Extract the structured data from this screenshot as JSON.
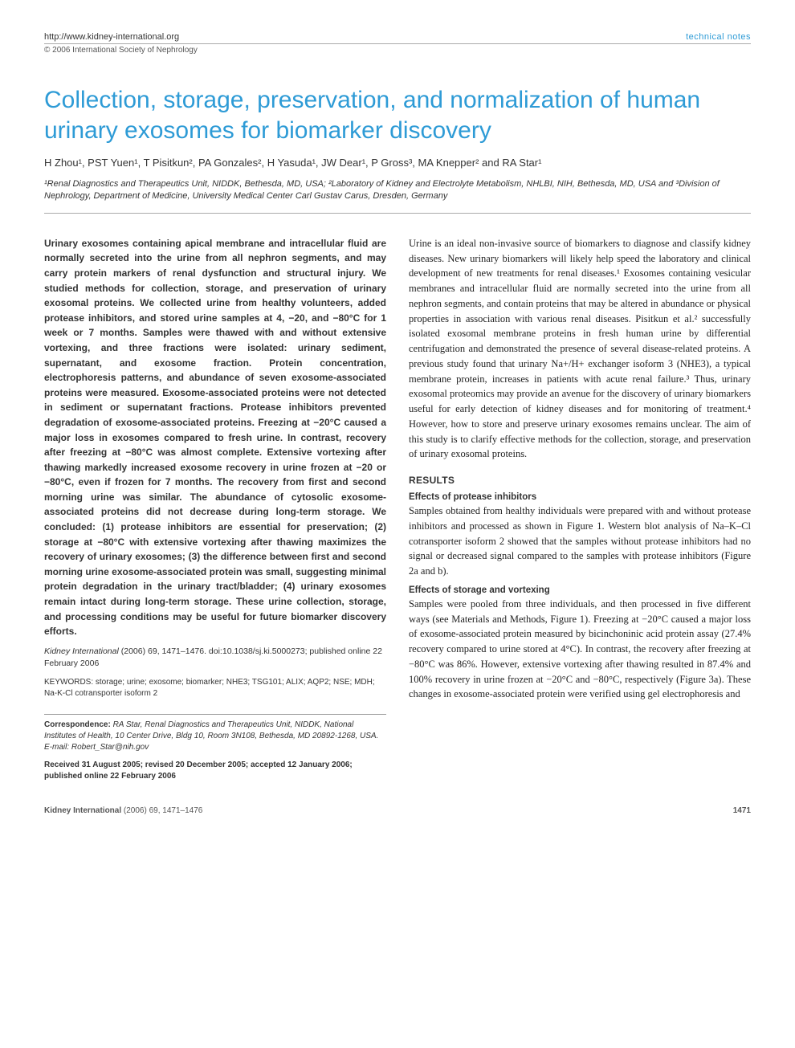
{
  "header": {
    "url": "http://www.kidney-international.org",
    "section": "technical notes",
    "copyright": "© 2006 International Society of Nephrology"
  },
  "title": "Collection, storage, preservation, and normalization of human urinary exosomes for biomarker discovery",
  "authors_line": "H Zhou¹, PST Yuen¹, T Pisitkun², PA Gonzales², H Yasuda¹, JW Dear¹, P Gross³, MA Knepper² and RA Star¹",
  "affiliations": "¹Renal Diagnostics and Therapeutics Unit, NIDDK, Bethesda, MD, USA; ²Laboratory of Kidney and Electrolyte Metabolism, NHLBI, NIH, Bethesda, MD, USA and ³Division of Nephrology, Department of Medicine, University Medical Center Carl Gustav Carus, Dresden, Germany",
  "abstract": "Urinary exosomes containing apical membrane and intracellular fluid are normally secreted into the urine from all nephron segments, and may carry protein markers of renal dysfunction and structural injury. We studied methods for collection, storage, and preservation of urinary exosomal proteins. We collected urine from healthy volunteers, added protease inhibitors, and stored urine samples at 4, −20, and −80°C for 1 week or 7 months. Samples were thawed with and without extensive vortexing, and three fractions were isolated: urinary sediment, supernatant, and exosome fraction. Protein concentration, electrophoresis patterns, and abundance of seven exosome-associated proteins were measured. Exosome-associated proteins were not detected in sediment or supernatant fractions. Protease inhibitors prevented degradation of exosome-associated proteins. Freezing at −20°C caused a major loss in exosomes compared to fresh urine. In contrast, recovery after freezing at −80°C was almost complete. Extensive vortexing after thawing markedly increased exosome recovery in urine frozen at −20 or −80°C, even if frozen for 7 months. The recovery from first and second morning urine was similar. The abundance of cytosolic exosome-associated proteins did not decrease during long-term storage. We concluded: (1) protease inhibitors are essential for preservation; (2) storage at −80°C with extensive vortexing after thawing maximizes the recovery of urinary exosomes; (3) the difference between first and second morning urine exosome-associated protein was small, suggesting minimal protein degradation in the urinary tract/bladder; (4) urinary exosomes remain intact during long-term storage. These urine collection, storage, and processing conditions may be useful for future biomarker discovery efforts.",
  "citation": {
    "journal_italic": "Kidney International",
    "details": "(2006) 69, 1471–1476. doi:10.1038/sj.ki.5000273; published online 22 February 2006"
  },
  "keywords_label": "KEYWORDS:",
  "keywords": "storage; urine; exosome; biomarker; NHE3; TSG101; ALIX; AQP2; NSE; MDH; Na-K-Cl cotransporter isoform 2",
  "intro_para": "Urine is an ideal non-invasive source of biomarkers to diagnose and classify kidney diseases. New urinary biomarkers will likely help speed the laboratory and clinical development of new treatments for renal diseases.¹ Exosomes containing vesicular membranes and intracellular fluid are normally secreted into the urine from all nephron segments, and contain proteins that may be altered in abundance or physical properties in association with various renal diseases. Pisitkun et al.² successfully isolated exosomal membrane proteins in fresh human urine by differential centrifugation and demonstrated the presence of several disease-related proteins. A previous study found that urinary Na+/H+ exchanger isoform 3 (NHE3), a typical membrane protein, increases in patients with acute renal failure.³ Thus, urinary exosomal proteomics may provide an avenue for the discovery of urinary biomarkers useful for early detection of kidney diseases and for monitoring of treatment.⁴ However, how to store and preserve urinary exosomes remains unclear. The aim of this study is to clarify effective methods for the collection, storage, and preservation of urinary exosomal proteins.",
  "results_head": "RESULTS",
  "sub1_head": "Effects of protease inhibitors",
  "sub1_body": "Samples obtained from healthy individuals were prepared with and without protease inhibitors and processed as shown in Figure 1. Western blot analysis of Na–K–Cl cotransporter isoform 2 showed that the samples without protease inhibitors had no signal or decreased signal compared to the samples with protease inhibitors (Figure 2a and b).",
  "sub2_head": "Effects of storage and vortexing",
  "sub2_body": "Samples were pooled from three individuals, and then processed in five different ways (see Materials and Methods, Figure 1). Freezing at −20°C caused a major loss of exosome-associated protein measured by bicinchoninic acid protein assay (27.4% recovery compared to urine stored at 4°C). In contrast, the recovery after freezing at −80°C was 86%. However, extensive vortexing after thawing resulted in 87.4% and 100% recovery in urine frozen at −20°C and −80°C, respectively (Figure 3a). These changes in exosome-associated protein were verified using gel electrophoresis and",
  "correspondence": {
    "label": "Correspondence:",
    "text": "RA Star, Renal Diagnostics and Therapeutics Unit, NIDDK, National Institutes of Health, 10 Center Drive, Bldg 10, Room 3N108, Bethesda, MD 20892-1268, USA. E-mail: Robert_Star@nih.gov"
  },
  "received": "Received 31 August 2005; revised 20 December 2005; accepted 12 January 2006; published online 22 February 2006",
  "footer": {
    "journal": "Kidney International",
    "issue": "(2006) 69, 1471–1476",
    "page": "1471"
  },
  "colors": {
    "accent": "#2e9bd6",
    "body_text": "#222222",
    "rule": "#aaaaaa"
  }
}
